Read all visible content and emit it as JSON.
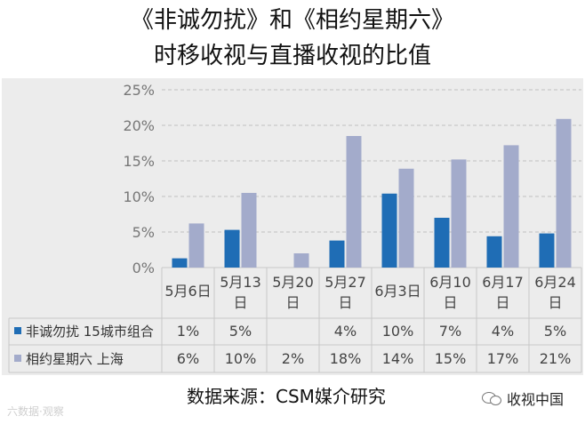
{
  "title_line1": "《非诚勿扰》和《相约星期六》",
  "title_line2": "时移收视与直播收视的比值",
  "source": "数据来源：CSM媒介研究",
  "watermark_left": "六数据·观察",
  "watermark_right": "收视中国",
  "colors": {
    "series1": "#1f6db5",
    "series2": "#a3abcb",
    "grid": "#bfbfbf",
    "panel": "#ececec"
  },
  "chart_data": {
    "type": "bar",
    "categories": [
      "5月6日",
      "5月13日",
      "5月20日",
      "5月27日",
      "6月3日",
      "6月10日",
      "6月17日",
      "6月24日"
    ],
    "category_lines": [
      [
        "5月6日"
      ],
      [
        "5月13",
        "日"
      ],
      [
        "5月20",
        "日"
      ],
      [
        "5月27",
        "日"
      ],
      [
        "6月3日"
      ],
      [
        "6月10",
        "日"
      ],
      [
        "6月17",
        "日"
      ],
      [
        "6月24",
        "日"
      ]
    ],
    "series": [
      {
        "name": "非诚勿扰 15城市组合",
        "values": [
          1.3,
          5.3,
          null,
          3.8,
          10.4,
          7.0,
          4.4,
          4.8
        ],
        "table_labels": [
          "1%",
          "5%",
          "",
          "4%",
          "10%",
          "7%",
          "4%",
          "5%"
        ]
      },
      {
        "name": "相约星期六 上海",
        "values": [
          6.2,
          10.5,
          2.0,
          18.5,
          13.9,
          15.2,
          17.2,
          20.9
        ],
        "table_labels": [
          "6%",
          "10%",
          "2%",
          "18%",
          "14%",
          "15%",
          "17%",
          "21%"
        ]
      }
    ],
    "ylim": [
      0,
      25
    ],
    "yticks": [
      "0%",
      "5%",
      "10%",
      "15%",
      "20%",
      "25%"
    ],
    "grid": true,
    "legend_placement": "data-table-left"
  }
}
